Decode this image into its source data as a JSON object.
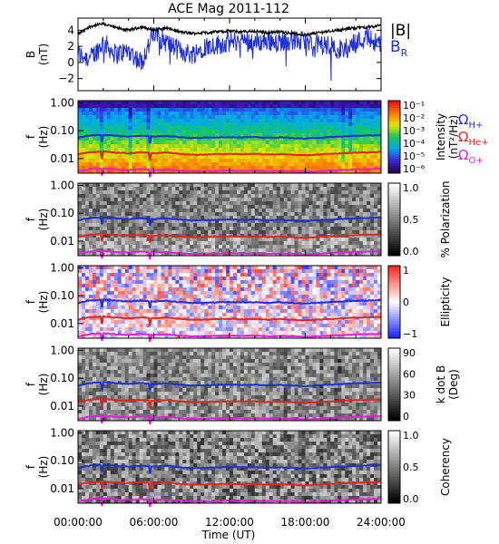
{
  "title": "ACE Mag 2011-112",
  "x_axis": {
    "label": "Time (UT)",
    "ticks": [
      "00:00:00",
      "06:00:00",
      "12:00:00",
      "18:00:00",
      "24:00:00"
    ],
    "range_hours": [
      0,
      24
    ]
  },
  "gyro_labels": {
    "h": {
      "sym": "Ω",
      "sub": "H+",
      "color": "#1f2fd8"
    },
    "he": {
      "sym": "Ω",
      "sub": "He+",
      "color": "#e0261f"
    },
    "o": {
      "sym": "Ω",
      "sub": "O+",
      "color": "#e020d8"
    }
  },
  "panel_b": {
    "ylabel": "B",
    "yunit": "(nT)",
    "yticks": [
      "4",
      "2",
      "0",
      "−2"
    ],
    "ylim": [
      -3.5,
      5.5
    ],
    "legend_total": "|B|",
    "legend_radial_main": "B",
    "legend_radial_sub": "R",
    "color_total": "#000000",
    "color_radial": "#1f2fd8"
  },
  "spectral_ylabel": "f",
  "spectral_yunit": "(Hz)",
  "spectral_yticks": [
    "1.00",
    "0.10",
    "0.01"
  ],
  "spectral_ylim_hz": [
    0.003,
    1.2
  ],
  "panels": [
    {
      "key": "intensity",
      "label1": "Intensity",
      "label2": "(nT²/Hz)",
      "cbar_ticks": [
        "10⁻¹",
        "10⁻²",
        "10⁻³",
        "10⁻⁴",
        "10⁻⁵",
        "10⁻⁶"
      ],
      "colormap": "rainbow"
    },
    {
      "key": "polarization",
      "label1": "% Polarization",
      "label2": "",
      "cbar_ticks": [
        "1.0",
        "0.5",
        "0.0"
      ],
      "colormap": "gray"
    },
    {
      "key": "ellipticity",
      "label1": "Ellipticity",
      "label2": "",
      "cbar_ticks": [
        "1",
        "0",
        "−1"
      ],
      "colormap": "bwr"
    },
    {
      "key": "kdotb",
      "label1": "k dot B",
      "label2": "(Deg)",
      "cbar_ticks": [
        "90",
        "60",
        "30",
        "0"
      ],
      "colormap": "gray"
    },
    {
      "key": "coherency",
      "label1": "Coherency",
      "label2": "",
      "cbar_ticks": [
        "1.0",
        "0.5",
        "0.0"
      ],
      "colormap": "gray"
    }
  ],
  "chart_data": {
    "type": "heatmap",
    "series": [
      {
        "panel": "B",
        "quantity": "|B|",
        "units": "nT",
        "x_hours": [
          0,
          1,
          2,
          3,
          4,
          5,
          6,
          7,
          8,
          9,
          10,
          11,
          12,
          13,
          14,
          15,
          16,
          17,
          18,
          19,
          20,
          21,
          22,
          23,
          24
        ],
        "values": [
          3.5,
          4.5,
          4.8,
          4.3,
          4.0,
          4.4,
          4.0,
          4.3,
          3.8,
          3.6,
          3.7,
          3.8,
          3.9,
          3.8,
          3.9,
          3.7,
          3.8,
          3.6,
          3.4,
          3.7,
          3.9,
          4.1,
          4.3,
          4.4,
          4.6
        ]
      },
      {
        "panel": "B",
        "quantity": "B_R",
        "units": "nT",
        "x_hours": [
          0,
          1,
          2,
          3,
          4,
          5,
          6,
          7,
          8,
          9,
          10,
          11,
          12,
          13,
          14,
          15,
          16,
          17,
          18,
          19,
          20,
          21,
          22,
          23,
          24
        ],
        "values": [
          1.0,
          0.5,
          2.5,
          1.0,
          1.5,
          0.0,
          3.5,
          2.5,
          1.5,
          1.0,
          2.0,
          2.2,
          2.5,
          2.8,
          2.5,
          2.7,
          2.6,
          2.8,
          2.5,
          2.3,
          2.0,
          1.5,
          2.5,
          3.2,
          2.0
        ]
      },
      {
        "panel": "spectral",
        "quantity": "Ω H+",
        "units": "Hz",
        "x_hours": [
          0,
          1,
          2,
          3,
          4,
          5,
          6,
          7,
          8,
          9,
          10,
          11,
          12,
          13,
          14,
          15,
          16,
          17,
          18,
          19,
          20,
          21,
          22,
          23,
          24
        ],
        "values": [
          0.055,
          0.068,
          0.072,
          0.066,
          0.062,
          0.067,
          0.062,
          0.066,
          0.059,
          0.055,
          0.056,
          0.058,
          0.059,
          0.058,
          0.059,
          0.056,
          0.058,
          0.055,
          0.052,
          0.056,
          0.059,
          0.062,
          0.066,
          0.067,
          0.07
        ]
      },
      {
        "panel": "spectral",
        "quantity": "Ω He+",
        "units": "Hz",
        "x_hours": [
          0,
          1,
          2,
          3,
          4,
          5,
          6,
          7,
          8,
          9,
          10,
          11,
          12,
          13,
          14,
          15,
          16,
          17,
          18,
          19,
          20,
          21,
          22,
          23,
          24
        ],
        "values": [
          0.014,
          0.017,
          0.018,
          0.0165,
          0.0155,
          0.0168,
          0.0155,
          0.0165,
          0.0148,
          0.0138,
          0.014,
          0.0145,
          0.0148,
          0.0145,
          0.0148,
          0.014,
          0.0145,
          0.0138,
          0.013,
          0.014,
          0.0148,
          0.0155,
          0.0165,
          0.0168,
          0.0175
        ]
      },
      {
        "panel": "spectral",
        "quantity": "Ω O+",
        "units": "Hz",
        "x_hours": [
          0,
          1,
          2,
          3,
          4,
          5,
          6,
          7,
          8,
          9,
          10,
          11,
          12,
          13,
          14,
          15,
          16,
          17,
          18,
          19,
          20,
          21,
          22,
          23,
          24
        ],
        "values": [
          0.0035,
          0.0042,
          0.0045,
          0.0041,
          0.0039,
          0.0042,
          0.0039,
          0.0041,
          0.0037,
          0.0035,
          0.0035,
          0.0036,
          0.0037,
          0.0036,
          0.0037,
          0.0035,
          0.0036,
          0.0035,
          0.0033,
          0.0035,
          0.0037,
          0.0039,
          0.0041,
          0.0042,
          0.0044
        ]
      }
    ]
  }
}
